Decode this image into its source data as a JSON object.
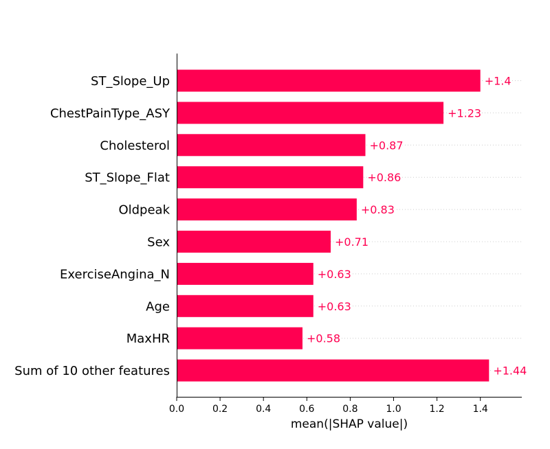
{
  "chart_data": {
    "type": "bar",
    "orientation": "horizontal",
    "categories": [
      "ST_Slope_Up",
      "ChestPainType_ASY",
      "Cholesterol",
      "ST_Slope_Flat",
      "Oldpeak",
      "Sex",
      "ExerciseAngina_N",
      "Age",
      "MaxHR",
      "Sum of 10 other features"
    ],
    "values": [
      1.4,
      1.23,
      0.87,
      0.86,
      0.83,
      0.71,
      0.63,
      0.63,
      0.58,
      1.44
    ],
    "value_labels": [
      "+1.4",
      "+1.23",
      "+0.87",
      "+0.86",
      "+0.83",
      "+0.71",
      "+0.63",
      "+0.63",
      "+0.58",
      "+1.44"
    ],
    "xlabel": "mean(|SHAP value|)",
    "ylabel": "",
    "title": "",
    "xlim": [
      0,
      1.6
    ],
    "xticks": [
      0.0,
      0.2,
      0.4,
      0.6,
      0.8,
      1.0,
      1.2,
      1.4
    ],
    "xtick_labels": [
      "0.0",
      "0.2",
      "0.4",
      "0.6",
      "0.8",
      "1.0",
      "1.2",
      "1.4"
    ],
    "grid": "dotted guide lines per row",
    "bar_color": "#ff0051",
    "label_color": "#ff0051"
  }
}
